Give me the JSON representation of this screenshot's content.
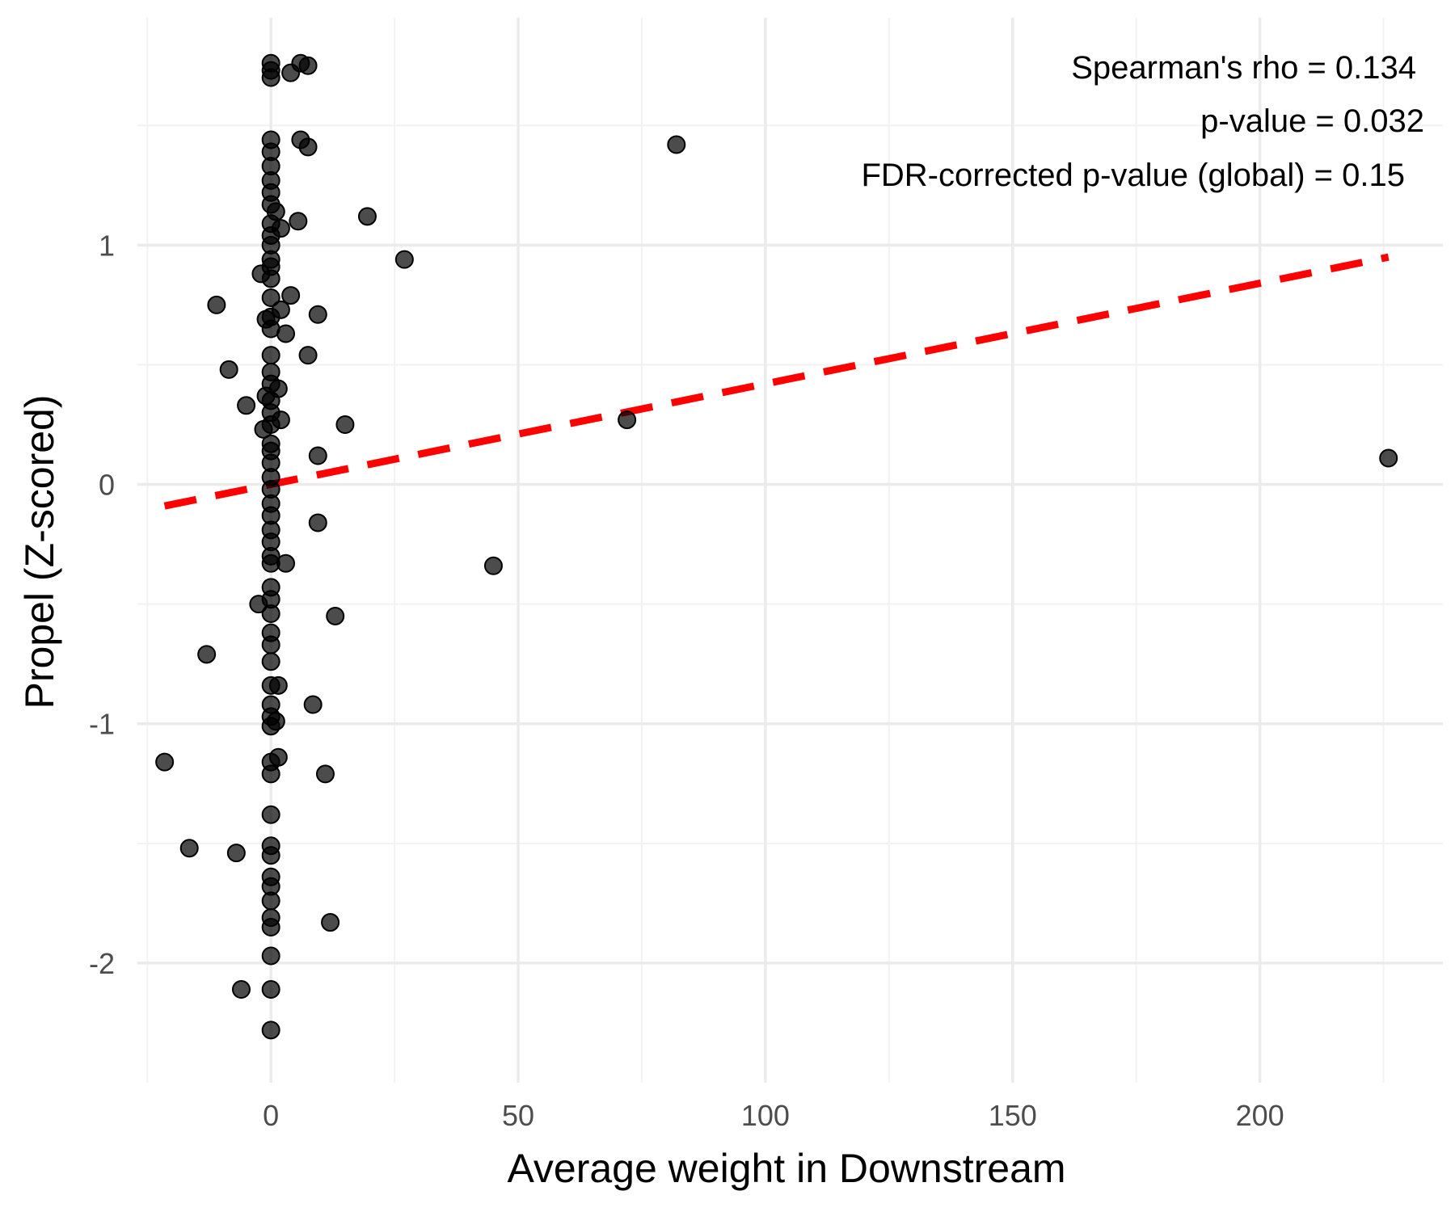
{
  "chart_data": {
    "type": "scatter",
    "title": "",
    "xlabel": "Average weight in Downstream",
    "ylabel": "Propel (Z-scored)",
    "xlim": [
      -27,
      237
    ],
    "ylim": [
      -2.5,
      1.95
    ],
    "x_ticks": [
      0,
      50,
      100,
      150,
      200
    ],
    "x_tick_labels": [
      "0",
      "50",
      "100",
      "150",
      "200"
    ],
    "y_ticks": [
      -2,
      -1,
      0,
      1
    ],
    "y_tick_labels": [
      "-2",
      "-1",
      "0",
      "1"
    ],
    "x_minor_ticks": [
      -25,
      25,
      75,
      125,
      175,
      225
    ],
    "y_minor_ticks": [
      -1.5,
      -0.5,
      0.5,
      1.5
    ],
    "grid": true,
    "annotations": [
      "Spearman's rho = 0.134",
      "p-value = 0.032",
      "FDR-corrected p-value (global) = 0.15"
    ],
    "trend_line": {
      "style": "dashed",
      "color": "#ff0000",
      "x": [
        -21.5,
        226
      ],
      "y": [
        -0.09,
        0.95
      ]
    },
    "point_color": "#000000",
    "points": [
      {
        "x": 0,
        "y": 1.76
      },
      {
        "x": 0,
        "y": 1.73
      },
      {
        "x": 0,
        "y": 1.7
      },
      {
        "x": 6,
        "y": 1.76
      },
      {
        "x": 7.5,
        "y": 1.75
      },
      {
        "x": 4,
        "y": 1.72
      },
      {
        "x": 82,
        "y": 1.42
      },
      {
        "x": 0,
        "y": 1.44
      },
      {
        "x": 6,
        "y": 1.44
      },
      {
        "x": 7.5,
        "y": 1.41
      },
      {
        "x": 0,
        "y": 1.39
      },
      {
        "x": 0,
        "y": 1.33
      },
      {
        "x": 0,
        "y": 1.27
      },
      {
        "x": 0,
        "y": 1.22
      },
      {
        "x": 0,
        "y": 1.17
      },
      {
        "x": 1,
        "y": 1.14
      },
      {
        "x": 19.5,
        "y": 1.12
      },
      {
        "x": 5.5,
        "y": 1.1
      },
      {
        "x": 0,
        "y": 1.09
      },
      {
        "x": 2,
        "y": 1.07
      },
      {
        "x": 0,
        "y": 1.04
      },
      {
        "x": 0,
        "y": 1.0
      },
      {
        "x": 27,
        "y": 0.94
      },
      {
        "x": 0,
        "y": 0.94
      },
      {
        "x": 0,
        "y": 0.91
      },
      {
        "x": -2,
        "y": 0.88
      },
      {
        "x": 0,
        "y": 0.86
      },
      {
        "x": 0,
        "y": 0.78
      },
      {
        "x": 4,
        "y": 0.79
      },
      {
        "x": -11,
        "y": 0.75
      },
      {
        "x": 2,
        "y": 0.73
      },
      {
        "x": 9.5,
        "y": 0.71
      },
      {
        "x": 0,
        "y": 0.7
      },
      {
        "x": -1,
        "y": 0.69
      },
      {
        "x": 0,
        "y": 0.65
      },
      {
        "x": 3,
        "y": 0.63
      },
      {
        "x": 0,
        "y": 0.54
      },
      {
        "x": 7.5,
        "y": 0.54
      },
      {
        "x": -8.5,
        "y": 0.48
      },
      {
        "x": 0,
        "y": 0.47
      },
      {
        "x": 0,
        "y": 0.42
      },
      {
        "x": 1.5,
        "y": 0.4
      },
      {
        "x": -1,
        "y": 0.37
      },
      {
        "x": 0,
        "y": 0.35
      },
      {
        "x": -5,
        "y": 0.33
      },
      {
        "x": 0,
        "y": 0.3
      },
      {
        "x": 2,
        "y": 0.27
      },
      {
        "x": 72,
        "y": 0.27
      },
      {
        "x": 0,
        "y": 0.25
      },
      {
        "x": 15,
        "y": 0.25
      },
      {
        "x": -1.5,
        "y": 0.23
      },
      {
        "x": 0,
        "y": 0.17
      },
      {
        "x": 0,
        "y": 0.14
      },
      {
        "x": 9.5,
        "y": 0.12
      },
      {
        "x": 226,
        "y": 0.11
      },
      {
        "x": 0,
        "y": 0.09
      },
      {
        "x": 0,
        "y": 0.03
      },
      {
        "x": 0,
        "y": -0.02
      },
      {
        "x": 0,
        "y": -0.08
      },
      {
        "x": 0,
        "y": -0.13
      },
      {
        "x": 9.5,
        "y": -0.16
      },
      {
        "x": 0,
        "y": -0.19
      },
      {
        "x": 0,
        "y": -0.24
      },
      {
        "x": 0,
        "y": -0.3
      },
      {
        "x": 0,
        "y": -0.33
      },
      {
        "x": 3,
        "y": -0.33
      },
      {
        "x": 45,
        "y": -0.34
      },
      {
        "x": 0,
        "y": -0.43
      },
      {
        "x": 0,
        "y": -0.48
      },
      {
        "x": -2.5,
        "y": -0.5
      },
      {
        "x": 0,
        "y": -0.54
      },
      {
        "x": 13,
        "y": -0.55
      },
      {
        "x": 0,
        "y": -0.62
      },
      {
        "x": 0,
        "y": -0.67
      },
      {
        "x": -13,
        "y": -0.71
      },
      {
        "x": 0,
        "y": -0.74
      },
      {
        "x": 0,
        "y": -0.84
      },
      {
        "x": 1.5,
        "y": -0.84
      },
      {
        "x": 8.5,
        "y": -0.92
      },
      {
        "x": 0,
        "y": -0.92
      },
      {
        "x": 0,
        "y": -0.97
      },
      {
        "x": 1,
        "y": -0.99
      },
      {
        "x": 0,
        "y": -1.01
      },
      {
        "x": -21.5,
        "y": -1.16
      },
      {
        "x": 1.5,
        "y": -1.14
      },
      {
        "x": 0,
        "y": -1.16
      },
      {
        "x": 11,
        "y": -1.21
      },
      {
        "x": 0,
        "y": -1.21
      },
      {
        "x": 0,
        "y": -1.38
      },
      {
        "x": 0,
        "y": -1.51
      },
      {
        "x": -16.5,
        "y": -1.52
      },
      {
        "x": -7,
        "y": -1.54
      },
      {
        "x": 0,
        "y": -1.55
      },
      {
        "x": 0,
        "y": -1.64
      },
      {
        "x": 0,
        "y": -1.68
      },
      {
        "x": 0,
        "y": -1.74
      },
      {
        "x": 0,
        "y": -1.81
      },
      {
        "x": 12,
        "y": -1.83
      },
      {
        "x": 0,
        "y": -1.85
      },
      {
        "x": 0,
        "y": -1.97
      },
      {
        "x": 0,
        "y": -2.11
      },
      {
        "x": -6,
        "y": -2.11
      },
      {
        "x": 0,
        "y": -2.28
      }
    ]
  }
}
